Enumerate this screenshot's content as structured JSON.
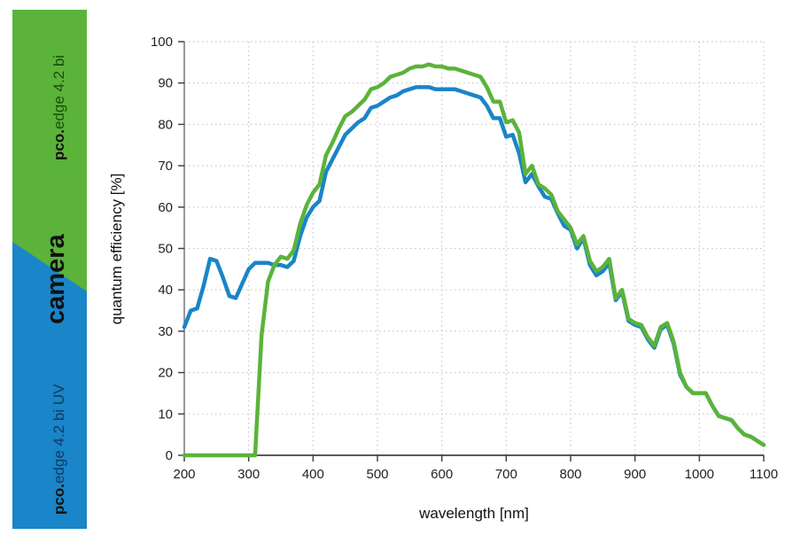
{
  "sidebar": {
    "top_product_brand": "pco.",
    "top_product_name": "edge 4.2 bi",
    "bottom_product_brand": "pco.",
    "bottom_product_name": "edge 4.2 bi UV",
    "center_word": "camera",
    "top_color": "#5bb33a",
    "bottom_color": "#1a85c8"
  },
  "chart_data": {
    "type": "line",
    "title": "",
    "xlabel": "wavelength [nm]",
    "ylabel": "quantum efficiency [%]",
    "xlim": [
      200,
      1100
    ],
    "ylim": [
      0,
      100
    ],
    "xticks": [
      200,
      300,
      400,
      500,
      600,
      700,
      800,
      900,
      1000,
      1100
    ],
    "yticks": [
      0,
      10,
      20,
      30,
      40,
      50,
      60,
      70,
      80,
      90,
      100
    ],
    "grid": true,
    "legend": "none (series identified by colored sidebar)",
    "x": [
      200,
      210,
      220,
      230,
      240,
      250,
      260,
      270,
      280,
      290,
      300,
      310,
      320,
      330,
      340,
      350,
      360,
      370,
      380,
      390,
      400,
      410,
      420,
      430,
      440,
      450,
      460,
      470,
      480,
      490,
      500,
      510,
      520,
      530,
      540,
      550,
      560,
      570,
      580,
      590,
      600,
      610,
      620,
      630,
      640,
      650,
      660,
      670,
      680,
      690,
      700,
      710,
      720,
      730,
      740,
      750,
      760,
      770,
      780,
      790,
      800,
      810,
      820,
      830,
      840,
      850,
      860,
      870,
      880,
      890,
      900,
      910,
      920,
      930,
      940,
      950,
      960,
      970,
      980,
      990,
      1000,
      1010,
      1020,
      1030,
      1040,
      1050,
      1060,
      1070,
      1080,
      1090,
      1100
    ],
    "series": [
      {
        "name": "pco.edge 4.2 bi UV",
        "color": "#1a85c8",
        "values": [
          31,
          35,
          35.5,
          41,
          47.5,
          47,
          43,
          38.5,
          38,
          41.5,
          45,
          46.5,
          46.5,
          46.5,
          46,
          46,
          45.5,
          47,
          53,
          57.5,
          60,
          61.5,
          68.5,
          71.5,
          74.5,
          77.5,
          79,
          80.5,
          81.5,
          84,
          84.5,
          85.5,
          86.5,
          87,
          88,
          88.5,
          89,
          89,
          89,
          88.5,
          88.5,
          88.5,
          88.5,
          88,
          87.5,
          87,
          86.5,
          84.5,
          81.5,
          81.5,
          77,
          77.5,
          73,
          66,
          68,
          65,
          62.5,
          62,
          58.5,
          55.5,
          54.5,
          50,
          52.5,
          46,
          43.5,
          44.5,
          46.5,
          37.5,
          39.5,
          32.5,
          31.5,
          31,
          28,
          26,
          30.5,
          31.5,
          27,
          19.5,
          16.5,
          15,
          15,
          15,
          12,
          9.5,
          9,
          8.5,
          6.5,
          5,
          4.5,
          3.5,
          2.5
        ]
      },
      {
        "name": "pco.edge 4.2 bi",
        "color": "#5bb33a",
        "values": [
          0,
          0,
          0,
          0,
          0,
          0,
          0,
          0,
          0,
          0,
          0,
          0,
          29,
          42,
          46,
          48,
          47.5,
          49.5,
          56,
          60.5,
          63.5,
          65.5,
          72.5,
          75.5,
          79,
          82,
          83,
          84.5,
          86,
          88.5,
          89,
          90,
          91.5,
          92,
          92.5,
          93.5,
          94,
          94,
          94.5,
          94,
          94,
          93.5,
          93.5,
          93,
          92.5,
          92,
          91.5,
          89,
          85.5,
          85.5,
          80.5,
          81,
          78,
          68,
          70,
          65.5,
          64.5,
          63,
          59,
          57,
          55,
          51,
          53,
          47,
          44.5,
          45.5,
          47.5,
          38,
          40,
          33,
          32,
          31.5,
          28.5,
          26.5,
          31,
          32,
          27.5,
          20,
          16.5,
          15,
          15,
          15,
          12,
          9.5,
          9,
          8.5,
          6.5,
          5,
          4.5,
          3.5,
          2.5
        ]
      }
    ]
  }
}
